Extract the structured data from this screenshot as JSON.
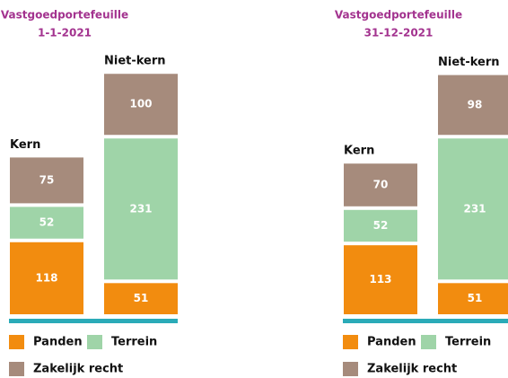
{
  "chart_data": [
    {
      "type": "bar",
      "stacked": true,
      "title": "Vastgoedportefeuille",
      "subtitle": "1-1-2021",
      "categories": [
        "Kern",
        "Niet-kern"
      ],
      "series": [
        {
          "name": "Panden",
          "color": "#f28c0f",
          "values": [
            118,
            51
          ]
        },
        {
          "name": "Terrein",
          "color": "#9fd4a8",
          "values": [
            52,
            231
          ]
        },
        {
          "name": "Zakelijk recht",
          "color": "#a68b7c",
          "values": [
            75,
            100
          ]
        }
      ]
    },
    {
      "type": "bar",
      "stacked": true,
      "title": "Vastgoedportefeuille",
      "subtitle": "31-12-2021",
      "categories": [
        "Kern",
        "Niet-kern"
      ],
      "series": [
        {
          "name": "Panden",
          "color": "#f28c0f",
          "values": [
            113,
            51
          ]
        },
        {
          "name": "Terrein",
          "color": "#9fd4a8",
          "values": [
            52,
            231
          ]
        },
        {
          "name": "Zakelijk recht",
          "color": "#a68b7c",
          "values": [
            70,
            98
          ]
        }
      ]
    }
  ]
}
